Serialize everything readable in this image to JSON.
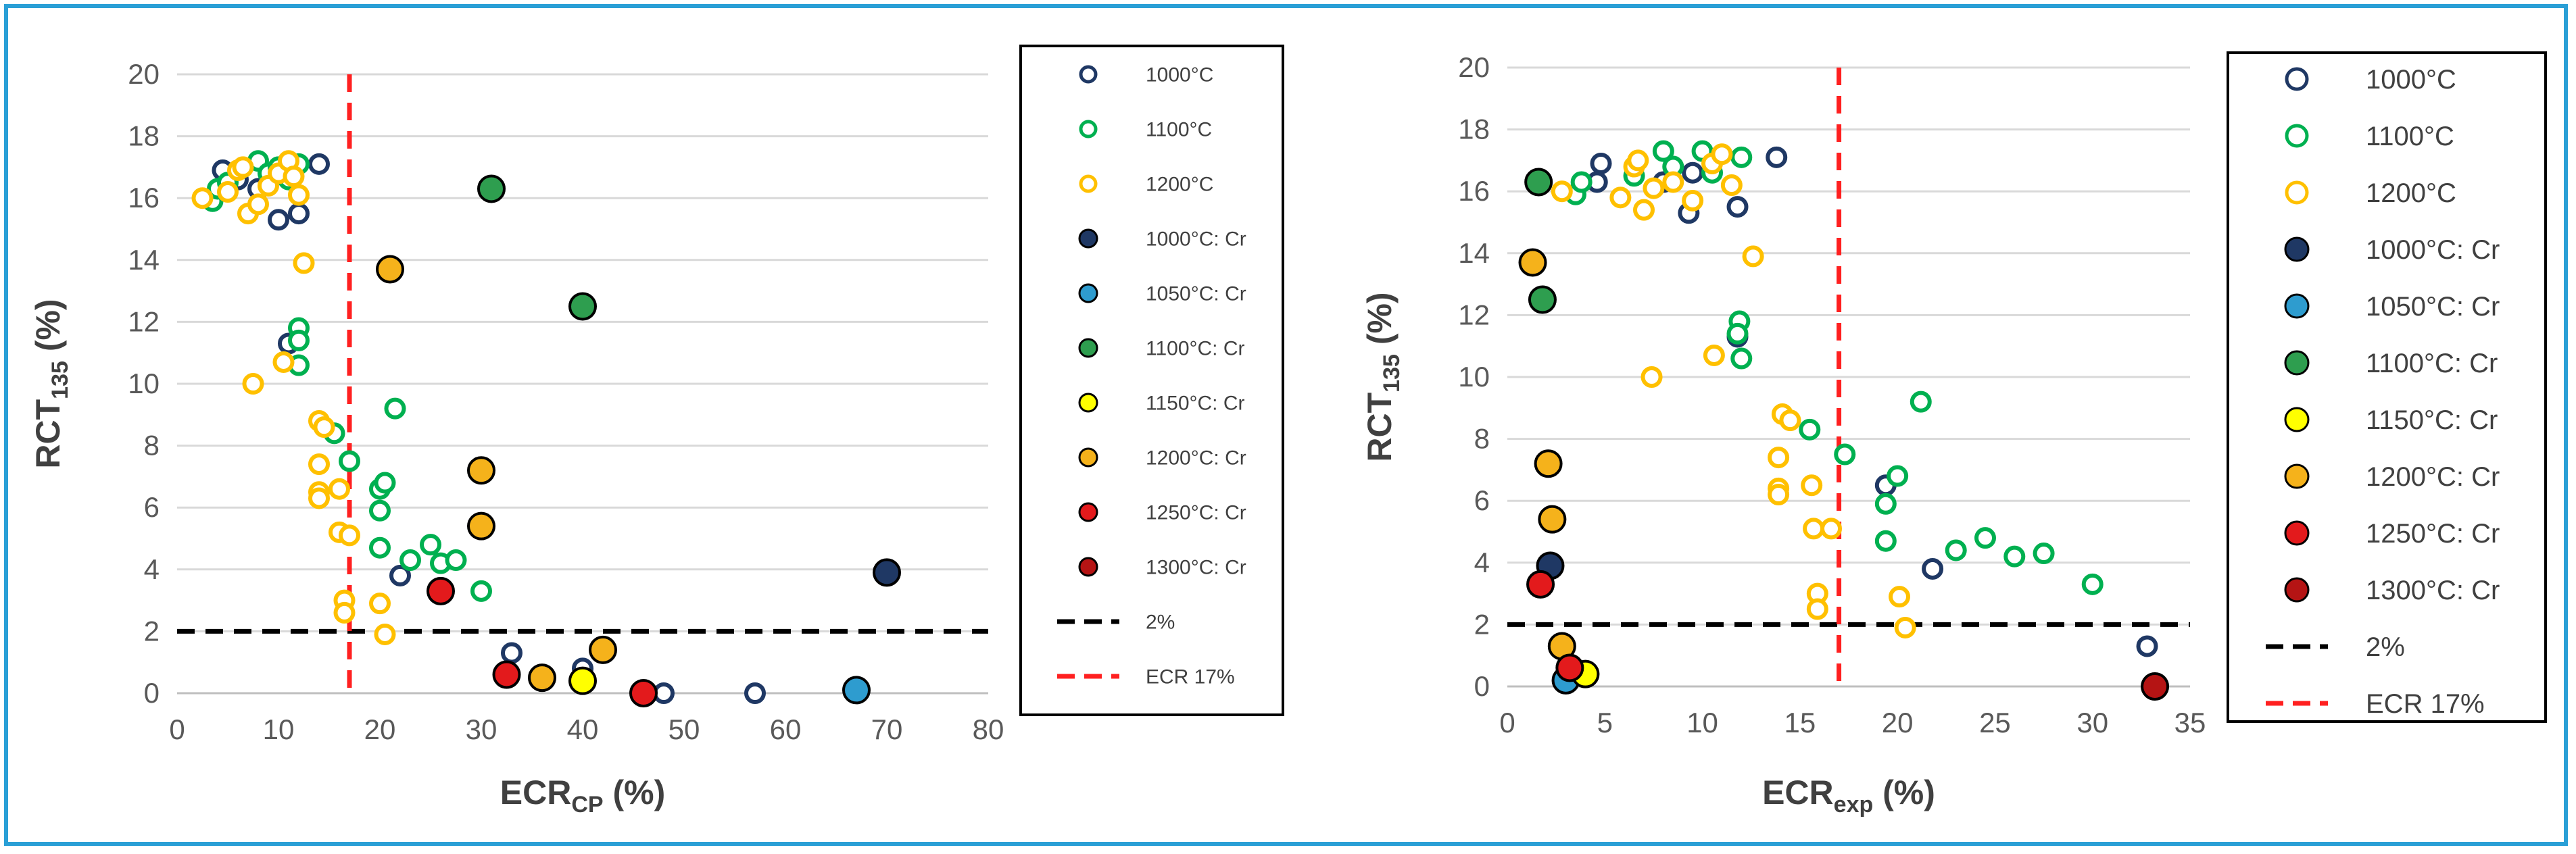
{
  "chart_data": [
    {
      "type": "scatter",
      "title": "",
      "ylabel": "RCT",
      "ylabel_sub": "135",
      "ylabel_suffix": " (%)",
      "xlabel": "ECR",
      "xlabel_sub": "CP",
      "xlabel_suffix": " (%)",
      "xlim": [
        0,
        80
      ],
      "ylim": [
        0,
        20
      ],
      "xticks": [
        "0",
        "10",
        "20",
        "30",
        "40",
        "50",
        "60",
        "70",
        "80"
      ],
      "yticks": [
        "0",
        "2",
        "4",
        "6",
        "8",
        "10",
        "12",
        "14",
        "16",
        "18",
        "20"
      ],
      "legend_position": "right",
      "series": [
        {
          "name": "1000°C",
          "style": "open",
          "color": "#1f3864",
          "points": [
            [
              4.5,
              16.9
            ],
            [
              6,
              16.6
            ],
            [
              8,
              16.3
            ],
            [
              10,
              15.3
            ],
            [
              12,
              15.5
            ],
            [
              14,
              17.1
            ],
            [
              11,
              11.3
            ],
            [
              22,
              3.8
            ],
            [
              33,
              1.3
            ],
            [
              40,
              0.8
            ],
            [
              48,
              0.0
            ],
            [
              57,
              0.0
            ]
          ]
        },
        {
          "name": "1100°C",
          "style": "open",
          "color": "#00b050",
          "points": [
            [
              3.5,
              15.9
            ],
            [
              4,
              16.3
            ],
            [
              5,
              16.5
            ],
            [
              8,
              17.2
            ],
            [
              9,
              16.8
            ],
            [
              10,
              17.0
            ],
            [
              11,
              16.6
            ],
            [
              12,
              17.1
            ],
            [
              12,
              11.8
            ],
            [
              12,
              11.4
            ],
            [
              12,
              10.6
            ],
            [
              15.5,
              8.4
            ],
            [
              17,
              7.5
            ],
            [
              20,
              6.6
            ],
            [
              20.5,
              6.8
            ],
            [
              20,
              5.9
            ],
            [
              20,
              4.7
            ],
            [
              21.5,
              9.2
            ],
            [
              23,
              4.3
            ],
            [
              25,
              4.8
            ],
            [
              26,
              4.2
            ],
            [
              27.5,
              4.3
            ],
            [
              30,
              3.3
            ]
          ]
        },
        {
          "name": "1200°C",
          "style": "open",
          "color": "#ffc000",
          "points": [
            [
              2.5,
              16.0
            ],
            [
              5,
              16.2
            ],
            [
              6,
              16.9
            ],
            [
              6.5,
              17.0
            ],
            [
              7,
              15.5
            ],
            [
              8,
              15.8
            ],
            [
              9,
              16.4
            ],
            [
              10,
              16.8
            ],
            [
              11,
              17.2
            ],
            [
              11.5,
              16.7
            ],
            [
              12,
              16.1
            ],
            [
              12.5,
              13.9
            ],
            [
              10.5,
              10.7
            ],
            [
              7.5,
              10.0
            ],
            [
              14,
              8.8
            ],
            [
              14.5,
              8.6
            ],
            [
              14,
              7.4
            ],
            [
              14,
              6.5
            ],
            [
              14,
              6.3
            ],
            [
              16,
              6.6
            ],
            [
              16,
              5.2
            ],
            [
              17,
              5.1
            ],
            [
              16.5,
              3.0
            ],
            [
              16.5,
              2.6
            ],
            [
              20,
              2.9
            ],
            [
              20.5,
              1.9
            ]
          ]
        },
        {
          "name": "1000°C: Cr",
          "style": "filled",
          "color": "#1f3864",
          "points": [
            [
              70,
              3.9
            ]
          ]
        },
        {
          "name": "1050°C: Cr",
          "style": "filled",
          "color": "#2e9ccf",
          "points": [
            [
              67,
              0.1
            ]
          ]
        },
        {
          "name": "1100°C: Cr",
          "style": "filled",
          "color": "#2e9e4f",
          "points": [
            [
              31,
              16.3
            ],
            [
              40,
              12.5
            ]
          ]
        },
        {
          "name": "1150°C: Cr",
          "style": "filled",
          "color": "#ffff00",
          "points": [
            [
              40,
              0.4
            ]
          ]
        },
        {
          "name": "1200°C: Cr",
          "style": "filled",
          "color": "#f5b21b",
          "points": [
            [
              21,
              13.7
            ],
            [
              30,
              7.2
            ],
            [
              30,
              5.4
            ],
            [
              36,
              0.5
            ],
            [
              42,
              1.4
            ]
          ]
        },
        {
          "name": "1250°C: Cr",
          "style": "filled",
          "color": "#e31a1c",
          "points": [
            [
              26,
              3.3
            ],
            [
              32.5,
              0.6
            ],
            [
              46,
              0.0
            ]
          ]
        },
        {
          "name": "1300°C: Cr",
          "style": "filled",
          "color": "#b51414",
          "points": []
        }
      ],
      "reference_lines": [
        {
          "name": "2%",
          "axis": "y",
          "value": 2,
          "color": "#000000",
          "dash": "dashed"
        },
        {
          "name": "ECR 17%",
          "axis": "x",
          "value": 17,
          "color": "#ff2020",
          "dash": "dashed"
        }
      ]
    },
    {
      "type": "scatter",
      "title": "",
      "ylabel": "RCT",
      "ylabel_sub": "135",
      "ylabel_suffix": " (%)",
      "xlabel": "ECR",
      "xlabel_sub": "exp",
      "xlabel_suffix": " (%)",
      "xlim": [
        0,
        35
      ],
      "ylim": [
        0,
        20
      ],
      "xticks": [
        "0",
        "5",
        "10",
        "15",
        "20",
        "25",
        "30",
        "35"
      ],
      "yticks": [
        "0",
        "2",
        "4",
        "6",
        "8",
        "10",
        "12",
        "14",
        "16",
        "18",
        "20"
      ],
      "legend_position": "right",
      "series": [
        {
          "name": "1000°C",
          "style": "open",
          "color": "#1f3864",
          "points": [
            [
              4.8,
              16.9
            ],
            [
              4.6,
              16.3
            ],
            [
              8,
              16.3
            ],
            [
              9.3,
              15.3
            ],
            [
              9.5,
              16.6
            ],
            [
              11.8,
              15.5
            ],
            [
              13.8,
              17.1
            ],
            [
              11.8,
              11.3
            ],
            [
              19.4,
              6.5
            ],
            [
              21.8,
              3.8
            ],
            [
              32.8,
              1.3
            ]
          ]
        },
        {
          "name": "1100°C",
          "style": "open",
          "color": "#00b050",
          "points": [
            [
              3.5,
              15.9
            ],
            [
              3.8,
              16.3
            ],
            [
              6.5,
              16.5
            ],
            [
              8,
              17.3
            ],
            [
              8.5,
              16.8
            ],
            [
              10,
              17.3
            ],
            [
              10.5,
              16.6
            ],
            [
              12,
              17.1
            ],
            [
              11.9,
              11.8
            ],
            [
              11.8,
              11.4
            ],
            [
              12,
              10.6
            ],
            [
              15.5,
              8.3
            ],
            [
              17.3,
              7.5
            ],
            [
              19.4,
              5.9
            ],
            [
              19.4,
              4.7
            ],
            [
              20,
              6.8
            ],
            [
              21.2,
              9.2
            ],
            [
              23,
              4.4
            ],
            [
              24.5,
              4.8
            ],
            [
              26,
              4.2
            ],
            [
              27.5,
              4.3
            ],
            [
              30,
              3.3
            ]
          ]
        },
        {
          "name": "1200°C",
          "style": "open",
          "color": "#ffc000",
          "points": [
            [
              2.8,
              16.0
            ],
            [
              5.8,
              15.8
            ],
            [
              6.5,
              16.8
            ],
            [
              6.7,
              17.0
            ],
            [
              7,
              15.4
            ],
            [
              7.5,
              16.1
            ],
            [
              8.5,
              16.3
            ],
            [
              9.5,
              15.7
            ],
            [
              10.5,
              16.9
            ],
            [
              11,
              17.2
            ],
            [
              11.5,
              16.2
            ],
            [
              12.6,
              13.9
            ],
            [
              7.4,
              10.0
            ],
            [
              10.6,
              10.7
            ],
            [
              14.1,
              8.8
            ],
            [
              14.5,
              8.6
            ],
            [
              13.9,
              7.4
            ],
            [
              13.9,
              6.4
            ],
            [
              13.9,
              6.2
            ],
            [
              15.6,
              6.5
            ],
            [
              15.7,
              5.1
            ],
            [
              16.6,
              5.1
            ],
            [
              15.9,
              3.0
            ],
            [
              15.9,
              2.5
            ],
            [
              20.1,
              2.9
            ],
            [
              20.4,
              1.9
            ]
          ]
        },
        {
          "name": "1000°C: Cr",
          "style": "filled",
          "color": "#1f3864",
          "points": [
            [
              2.2,
              3.9
            ]
          ]
        },
        {
          "name": "1050°C: Cr",
          "style": "filled",
          "color": "#2e9ccf",
          "points": [
            [
              3,
              0.2
            ]
          ]
        },
        {
          "name": "1100°C: Cr",
          "style": "filled",
          "color": "#2e9e4f",
          "points": [
            [
              1.6,
              16.3
            ],
            [
              1.8,
              12.5
            ]
          ]
        },
        {
          "name": "1150°C: Cr",
          "style": "filled",
          "color": "#ffff00",
          "points": [
            [
              4,
              0.4
            ]
          ]
        },
        {
          "name": "1200°C: Cr",
          "style": "filled",
          "color": "#f5b21b",
          "points": [
            [
              1.3,
              13.7
            ],
            [
              2.1,
              7.2
            ],
            [
              2.3,
              5.4
            ],
            [
              2.8,
              1.3
            ]
          ]
        },
        {
          "name": "1250°C: Cr",
          "style": "filled",
          "color": "#e31a1c",
          "points": [
            [
              1.7,
              3.3
            ],
            [
              3.2,
              0.6
            ]
          ]
        },
        {
          "name": "1300°C: Cr",
          "style": "filled",
          "color": "#b51414",
          "points": [
            [
              33.2,
              0.0
            ]
          ]
        }
      ],
      "reference_lines": [
        {
          "name": "2%",
          "axis": "y",
          "value": 2,
          "color": "#000000",
          "dash": "dashed"
        },
        {
          "name": "ECR 17%",
          "axis": "x",
          "value": 17,
          "color": "#ff2020",
          "dash": "dashed"
        }
      ]
    }
  ]
}
